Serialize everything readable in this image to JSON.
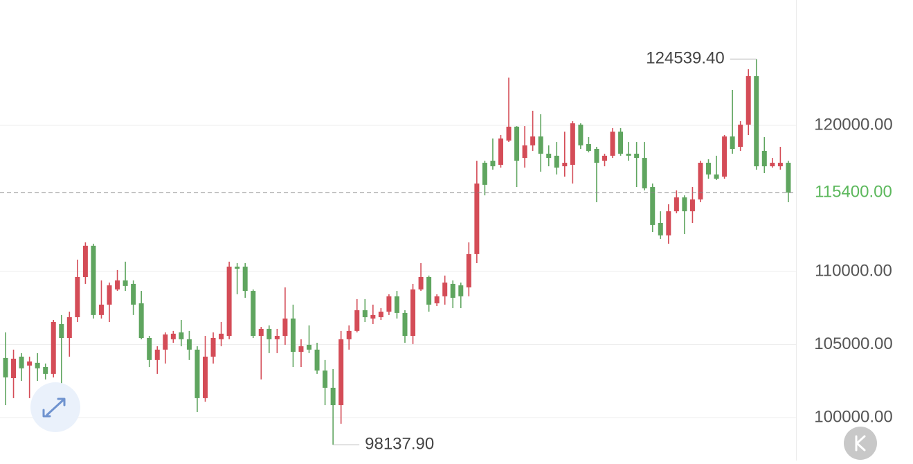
{
  "chart_data": {
    "type": "candlestick",
    "up_color": "#d44c57",
    "down_color": "#5fa55f",
    "ylim": [
      97060,
      128580
    ],
    "yticks": [
      {
        "value": 100000,
        "label": "100000.00"
      },
      {
        "value": 105000,
        "label": "105000.00"
      },
      {
        "value": 110000,
        "label": "110000.00"
      },
      {
        "value": 120000,
        "label": "120000.00"
      }
    ],
    "grid": true,
    "open": [
      104080,
      102700,
      104170,
      103560,
      103750,
      103460,
      102990,
      106400,
      105450,
      106870,
      109620,
      111760,
      107020,
      107730,
      108770,
      109390,
      109150,
      107820,
      105450,
      103940,
      104650,
      105360,
      105830,
      105360,
      104650,
      101330,
      104170,
      105360,
      105590,
      110330,
      110330,
      108670,
      105590,
      106070,
      105360,
      105590,
      106780,
      104500,
      104980,
      104650,
      103220,
      102040,
      100850,
      105360,
      105930,
      107350,
      106780,
      106870,
      107250,
      108300,
      107160,
      105590,
      108770,
      109620,
      107820,
      108300,
      109150,
      109050,
      108910,
      111190,
      117440,
      117580,
      117300,
      118960,
      119910,
      117770,
      118630,
      119240,
      118060,
      117920,
      117200,
      117300,
      120050,
      118720,
      118390,
      117580,
      117920,
      119570,
      118060,
      118060,
      117770,
      115780,
      113320,
      112470,
      114120,
      115070,
      114120,
      114930,
      117440,
      116640,
      116490,
      119240,
      118530,
      120050,
      123370,
      118250,
      117200,
      117200,
      117440
    ],
    "high": [
      105830,
      104650,
      104410,
      104170,
      104410,
      103700,
      106680,
      107020,
      107250,
      110810,
      111990,
      111900,
      109390,
      109240,
      110100,
      110670,
      109390,
      108670,
      105590,
      104880,
      105830,
      105930,
      106680,
      105930,
      104880,
      105590,
      105830,
      106540,
      110670,
      110570,
      110570,
      108770,
      106210,
      106310,
      106070,
      108910,
      107730,
      105360,
      106310,
      105120,
      103940,
      103320,
      105930,
      106310,
      108110,
      108110,
      107730,
      107490,
      108440,
      108670,
      107350,
      109150,
      110570,
      109720,
      108440,
      109720,
      109390,
      109240,
      111990,
      117580,
      117580,
      119100,
      119340,
      123270,
      119950,
      119950,
      121000,
      120760,
      118630,
      118860,
      119570,
      120290,
      120140,
      119200,
      118530,
      118060,
      119810,
      119810,
      118860,
      118860,
      118860,
      116020,
      114120,
      114600,
      115550,
      115210,
      115780,
      117580,
      117680,
      117920,
      119340,
      122420,
      120290,
      123840,
      124539.4,
      119200,
      117770,
      118530,
      117580
    ],
    "low": [
      100850,
      101330,
      102510,
      101330,
      102510,
      102610,
      102750,
      102040,
      104170,
      106540,
      109150,
      106780,
      106780,
      106540,
      108670,
      108670,
      107020,
      105360,
      103460,
      102990,
      103700,
      105120,
      104880,
      103940,
      100380,
      101090,
      103700,
      104880,
      105360,
      108440,
      108200,
      105450,
      102610,
      104410,
      104410,
      104980,
      103460,
      103460,
      104410,
      102990,
      100850,
      98137.9,
      99580,
      104650,
      105830,
      106540,
      106400,
      106680,
      107020,
      106780,
      105120,
      105030,
      108670,
      107250,
      107630,
      107730,
      107490,
      107490,
      108300,
      110570,
      115210,
      116970,
      117110,
      118860,
      115780,
      117110,
      118250,
      116830,
      117200,
      116640,
      116490,
      116020,
      118390,
      118150,
      114740,
      117200,
      117770,
      117920,
      117580,
      115780,
      115550,
      112700,
      112230,
      111900,
      113980,
      112560,
      113320,
      114740,
      116350,
      116260,
      116350,
      118060,
      118250,
      119340,
      116970,
      116730,
      117110,
      116970,
      114740
    ],
    "close": [
      102750,
      104030,
      103370,
      103840,
      103370,
      102990,
      106540,
      105450,
      106870,
      109620,
      111760,
      107020,
      107730,
      109050,
      109390,
      109010,
      107730,
      105450,
      103940,
      104650,
      105690,
      105740,
      105360,
      104650,
      101330,
      104170,
      105450,
      105740,
      110330,
      110190,
      108670,
      105590,
      106070,
      105360,
      105590,
      106780,
      104500,
      104880,
      104650,
      103220,
      102040,
      100850,
      105360,
      105930,
      107350,
      106870,
      107020,
      107250,
      108300,
      107160,
      105590,
      108770,
      109620,
      107730,
      108300,
      109240,
      108200,
      108300,
      111190,
      116020,
      115930,
      117200,
      119100,
      119910,
      117580,
      118630,
      119240,
      118060,
      117770,
      117110,
      117440,
      120140,
      118630,
      118250,
      117440,
      117920,
      119570,
      118060,
      117920,
      117770,
      115690,
      113180,
      112470,
      114120,
      115070,
      114120,
      114930,
      117440,
      116640,
      116350,
      119240,
      118390,
      120050,
      123370,
      117200,
      117200,
      117440,
      117440,
      115400
    ],
    "max_label": {
      "value": 124539.4,
      "label": "124539.40"
    },
    "min_label": {
      "value": 98137.9,
      "label": "98137.90"
    },
    "last_price": {
      "value": 115400,
      "label": "115400.00",
      "color": "#5cb85c"
    }
  }
}
